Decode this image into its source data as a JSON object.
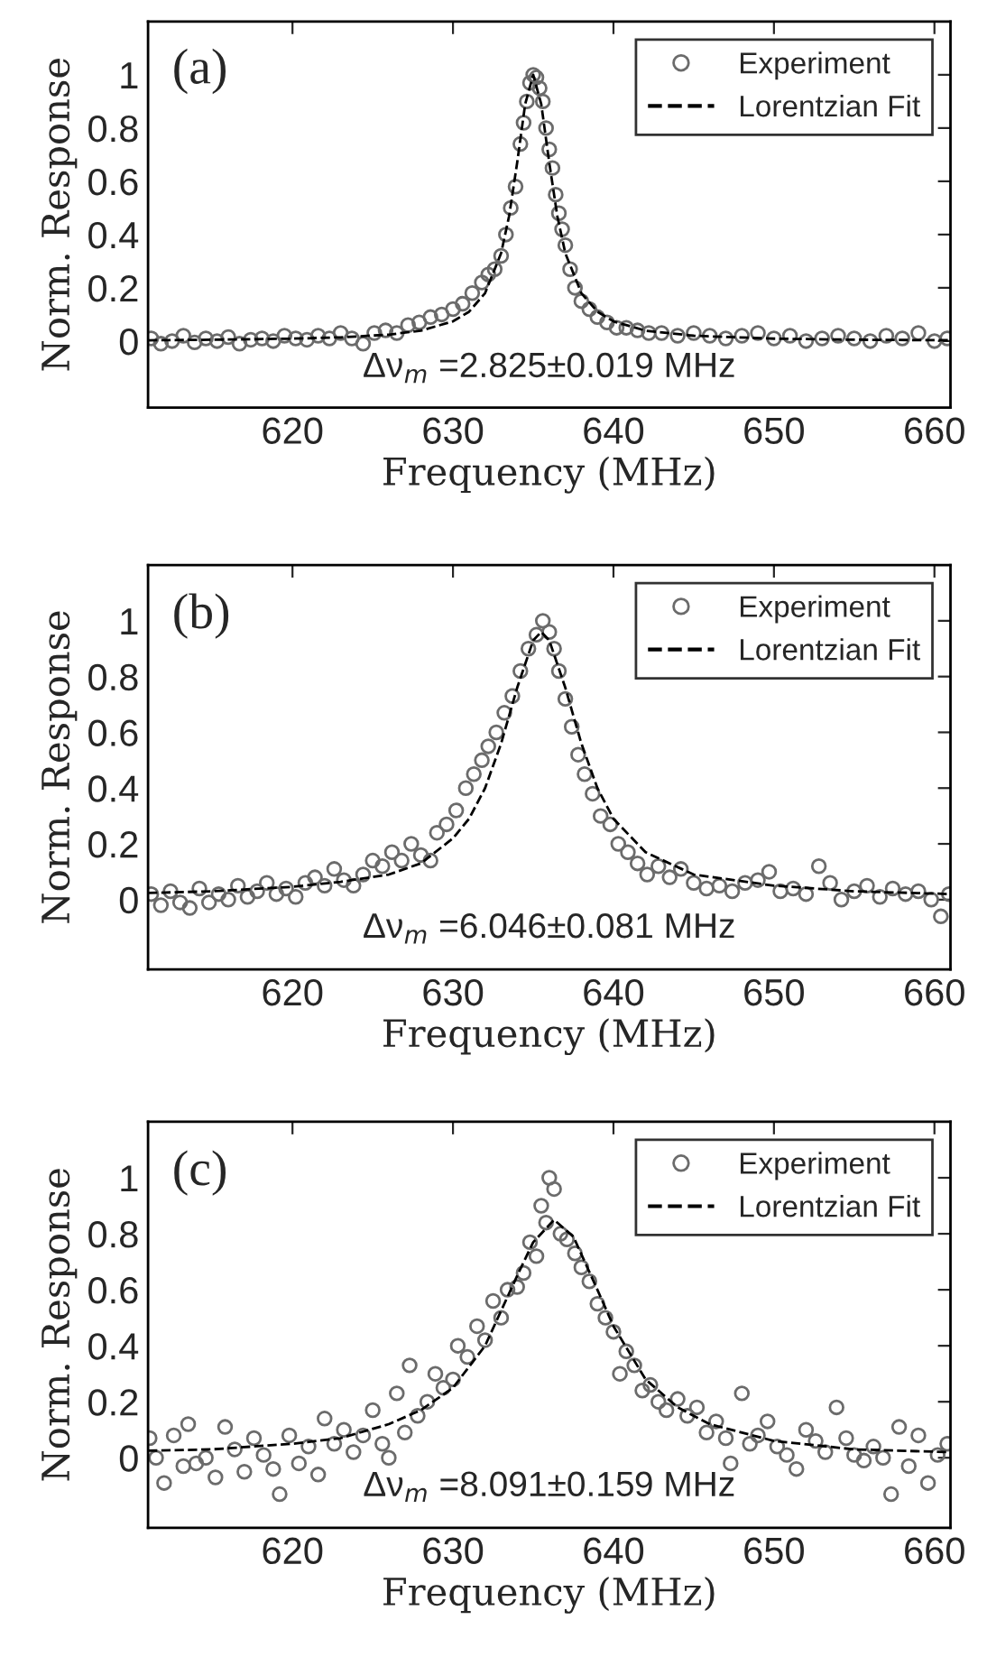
{
  "chart_data": [
    {
      "type": "scatter",
      "title": "(a)",
      "xlabel": "Frequency (MHz)",
      "ylabel": "Norm. Response",
      "annotations": [
        "Δν$_{m}$ =2.825±0.019 MHz"
      ],
      "xlim": [
        611,
        661
      ],
      "ylim": [
        -0.25,
        1.2
      ],
      "xticks": [
        620,
        630,
        640,
        650,
        660
      ],
      "yticks": [
        0,
        0.2,
        0.4,
        0.6,
        0.8,
        1
      ],
      "legend": "top right",
      "series": [
        {
          "name": "Experiment",
          "marker": "circle",
          "color": "#6b6b6b",
          "x": [
            611.2,
            611.8,
            612.5,
            613.2,
            613.9,
            614.6,
            615.3,
            616,
            616.7,
            617.4,
            618.1,
            618.8,
            619.5,
            620.2,
            620.9,
            621.6,
            622.3,
            623,
            623.7,
            624.4,
            625.1,
            625.8,
            626.5,
            627.2,
            627.9,
            628.6,
            629.3,
            630,
            630.6,
            631.2,
            631.8,
            632.2,
            632.6,
            633,
            633.3,
            633.6,
            633.9,
            634.2,
            634.4,
            634.6,
            634.8,
            635,
            635.2,
            635.4,
            635.6,
            635.8,
            636,
            636.2,
            636.4,
            636.6,
            636.8,
            637,
            637.3,
            637.6,
            638,
            638.5,
            639,
            639.6,
            640.2,
            640.8,
            641.5,
            642.2,
            643,
            644,
            645,
            646,
            647,
            648,
            649,
            650,
            651,
            652,
            653,
            654,
            655,
            656,
            657,
            658,
            659,
            660,
            660.8
          ],
          "values": [
            0.01,
            -0.01,
            0.0,
            0.02,
            -0.005,
            0.01,
            0.0,
            0.015,
            -0.01,
            0.005,
            0.01,
            0.0,
            0.02,
            0.01,
            0.005,
            0.02,
            0.01,
            0.03,
            0.01,
            -0.01,
            0.03,
            0.04,
            0.03,
            0.06,
            0.07,
            0.09,
            0.1,
            0.12,
            0.14,
            0.18,
            0.22,
            0.25,
            0.27,
            0.32,
            0.4,
            0.5,
            0.58,
            0.74,
            0.82,
            0.9,
            0.97,
            1.0,
            0.99,
            0.95,
            0.9,
            0.8,
            0.72,
            0.65,
            0.55,
            0.48,
            0.42,
            0.36,
            0.27,
            0.2,
            0.15,
            0.12,
            0.09,
            0.07,
            0.05,
            0.05,
            0.04,
            0.03,
            0.03,
            0.02,
            0.03,
            0.02,
            0.01,
            0.02,
            0.03,
            0.01,
            0.02,
            0.0,
            0.01,
            0.02,
            0.01,
            0.0,
            0.02,
            0.01,
            0.03,
            0.0,
            0.01
          ]
        },
        {
          "name": "Lorentzian Fit",
          "type": "line",
          "line_style": "dashed",
          "marker": "none",
          "color": "#000000",
          "x": [
            611,
            615,
            620,
            623,
            626,
            628,
            630,
            631,
            632,
            633,
            633.5,
            634,
            634.5,
            635,
            635.5,
            636,
            636.5,
            637,
            638,
            639,
            640,
            642,
            645,
            650,
            655,
            661
          ],
          "values": [
            0.003,
            0.005,
            0.009,
            0.014,
            0.024,
            0.039,
            0.074,
            0.11,
            0.18,
            0.33,
            0.47,
            0.67,
            0.89,
            1.0,
            0.89,
            0.67,
            0.47,
            0.33,
            0.18,
            0.11,
            0.074,
            0.039,
            0.02,
            0.009,
            0.005,
            0.003
          ]
        }
      ]
    },
    {
      "type": "scatter",
      "title": "(b)",
      "xlabel": "Frequency (MHz)",
      "ylabel": "Norm. Response",
      "annotations": [
        "Δν$_{m}$ =6.046±0.081 MHz"
      ],
      "xlim": [
        611,
        661
      ],
      "ylim": [
        -0.25,
        1.2
      ],
      "xticks": [
        620,
        630,
        640,
        650,
        660
      ],
      "yticks": [
        0,
        0.2,
        0.4,
        0.6,
        0.8,
        1
      ],
      "legend": "top right",
      "series": [
        {
          "name": "Experiment",
          "marker": "circle",
          "color": "#6b6b6b",
          "x": [
            611.2,
            611.8,
            612.4,
            613,
            613.6,
            614.2,
            614.8,
            615.4,
            616,
            616.6,
            617.2,
            617.8,
            618.4,
            619,
            619.6,
            620.2,
            620.8,
            621.4,
            622,
            622.6,
            623.2,
            623.8,
            624.4,
            625,
            625.6,
            626.2,
            626.8,
            627.4,
            628,
            628.6,
            629,
            629.6,
            630.2,
            630.8,
            631.3,
            631.8,
            632.2,
            632.7,
            633.2,
            633.7,
            634.2,
            634.7,
            635.2,
            635.6,
            636,
            636.3,
            636.6,
            637,
            637.4,
            637.8,
            638.2,
            638.7,
            639.2,
            639.8,
            640.3,
            640.9,
            641.5,
            642.1,
            642.8,
            643.5,
            644.2,
            645,
            645.8,
            646.6,
            647.4,
            648.2,
            649,
            649.7,
            650.4,
            651.2,
            652,
            652.8,
            653.5,
            654.2,
            655,
            655.8,
            656.6,
            657.4,
            658.2,
            659,
            659.8,
            660.4,
            660.9
          ],
          "values": [
            0.02,
            -0.02,
            0.03,
            -0.01,
            -0.03,
            0.04,
            -0.01,
            0.02,
            0.0,
            0.05,
            0.01,
            0.03,
            0.06,
            0.02,
            0.04,
            0.01,
            0.06,
            0.08,
            0.05,
            0.11,
            0.07,
            0.05,
            0.09,
            0.14,
            0.12,
            0.17,
            0.14,
            0.2,
            0.16,
            0.14,
            0.24,
            0.27,
            0.32,
            0.4,
            0.45,
            0.5,
            0.55,
            0.6,
            0.67,
            0.73,
            0.82,
            0.9,
            0.95,
            1.0,
            0.96,
            0.9,
            0.82,
            0.72,
            0.62,
            0.52,
            0.45,
            0.38,
            0.3,
            0.27,
            0.2,
            0.17,
            0.13,
            0.09,
            0.12,
            0.08,
            0.11,
            0.06,
            0.04,
            0.05,
            0.03,
            0.06,
            0.07,
            0.1,
            0.03,
            0.04,
            0.02,
            0.12,
            0.06,
            0.0,
            0.03,
            0.05,
            0.01,
            0.04,
            0.02,
            0.03,
            0.0,
            -0.06,
            0.02
          ]
        },
        {
          "name": "Lorentzian Fit",
          "type": "line",
          "line_style": "dashed",
          "marker": "none",
          "color": "#000000",
          "x": [
            611,
            615,
            620,
            623,
            626,
            628,
            630,
            631,
            632,
            633,
            634,
            635,
            635.5,
            636,
            637,
            638,
            639,
            640,
            642,
            645,
            650,
            655,
            661
          ],
          "values": [
            0.024,
            0.03,
            0.046,
            0.064,
            0.09,
            0.13,
            0.22,
            0.29,
            0.4,
            0.56,
            0.76,
            0.93,
            0.96,
            0.93,
            0.76,
            0.56,
            0.4,
            0.29,
            0.17,
            0.09,
            0.05,
            0.03,
            0.02
          ]
        }
      ]
    },
    {
      "type": "scatter",
      "title": "(c)",
      "xlabel": "Frequency (MHz)",
      "ylabel": "Norm. Response",
      "annotations": [
        "Δν$_{m}$ =8.091±0.159 MHz"
      ],
      "xlim": [
        611,
        661
      ],
      "ylim": [
        -0.25,
        1.2
      ],
      "xticks": [
        620,
        630,
        640,
        650,
        660
      ],
      "yticks": [
        0,
        0.2,
        0.4,
        0.6,
        0.8,
        1
      ],
      "legend": "top right",
      "series": [
        {
          "name": "Experiment",
          "marker": "circle",
          "color": "#6b6b6b",
          "x": [
            611.1,
            611.5,
            612,
            612.6,
            613.2,
            613.5,
            614,
            614.6,
            615.2,
            615.8,
            616.4,
            617,
            617.6,
            618.2,
            618.8,
            619.2,
            619.8,
            620.4,
            621,
            621.6,
            622,
            622.6,
            623.2,
            623.8,
            624.4,
            625,
            625.6,
            626,
            626.5,
            627,
            627.3,
            627.8,
            628.4,
            628.9,
            629.4,
            630,
            630.3,
            630.9,
            631.5,
            632,
            632.5,
            633,
            633.4,
            634,
            634.4,
            634.8,
            635.2,
            635.5,
            635.8,
            636,
            636.3,
            636.7,
            637.1,
            637.6,
            638,
            638.5,
            639,
            639.5,
            640,
            640.4,
            640.8,
            641.3,
            641.8,
            642.3,
            642.8,
            643.3,
            644,
            644.6,
            645.2,
            645.8,
            646.4,
            647,
            647.3,
            648,
            648.5,
            649,
            649.6,
            650.2,
            650.8,
            651.4,
            652,
            652.6,
            653.2,
            653.9,
            654.5,
            655,
            655.6,
            656.2,
            656.8,
            657.3,
            657.8,
            658.4,
            659,
            659.6,
            660.2,
            660.8
          ],
          "values": [
            0.07,
            0.0,
            -0.09,
            0.08,
            -0.03,
            0.12,
            -0.02,
            0.0,
            -0.07,
            0.11,
            0.03,
            -0.05,
            0.07,
            0.01,
            -0.04,
            -0.13,
            0.08,
            -0.02,
            0.04,
            -0.06,
            0.14,
            0.05,
            0.1,
            0.02,
            0.08,
            0.17,
            0.05,
            0.0,
            0.23,
            0.09,
            0.33,
            0.15,
            0.2,
            0.3,
            0.25,
            0.28,
            0.4,
            0.36,
            0.47,
            0.42,
            0.56,
            0.5,
            0.6,
            0.61,
            0.66,
            0.77,
            0.72,
            0.9,
            0.84,
            1.0,
            0.96,
            0.8,
            0.78,
            0.73,
            0.68,
            0.63,
            0.55,
            0.5,
            0.45,
            0.3,
            0.38,
            0.33,
            0.24,
            0.26,
            0.2,
            0.17,
            0.21,
            0.15,
            0.18,
            0.09,
            0.13,
            0.07,
            -0.02,
            0.23,
            0.05,
            0.08,
            0.13,
            0.04,
            0.01,
            -0.04,
            0.1,
            0.06,
            0.02,
            0.18,
            0.07,
            0.01,
            -0.01,
            0.04,
            0.0,
            -0.13,
            0.11,
            -0.03,
            0.08,
            -0.09,
            0.01,
            0.05
          ]
        },
        {
          "name": "Lorentzian Fit",
          "type": "line",
          "line_style": "dashed",
          "marker": "none",
          "color": "#000000",
          "x": [
            611,
            615,
            620,
            623,
            626,
            628,
            630,
            632,
            634,
            635,
            636.3,
            637.5,
            639,
            640,
            642,
            644,
            646,
            650,
            655,
            661
          ],
          "values": [
            0.025,
            0.03,
            0.05,
            0.07,
            0.12,
            0.17,
            0.25,
            0.4,
            0.65,
            0.77,
            0.85,
            0.79,
            0.6,
            0.47,
            0.28,
            0.18,
            0.12,
            0.06,
            0.03,
            0.02
          ]
        }
      ]
    }
  ]
}
